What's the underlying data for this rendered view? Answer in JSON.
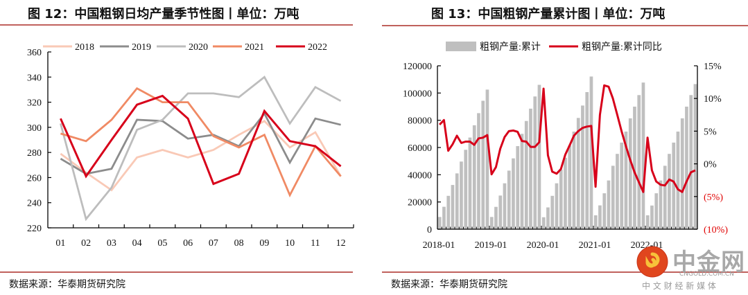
{
  "left": {
    "title": "图 12：中国粗钢日均产量季节性图丨单位：万吨",
    "source": "数据来源：华泰期货研究院"
  },
  "right": {
    "title": "图 13：中国粗钢产量累计图丨单位：万吨",
    "source": "数据来源：华泰期货研究院"
  },
  "watermark": {
    "name": "中金网",
    "domain": "CNGOLD.COM.CN",
    "tagline": "中 文 财 经 新 媒 体"
  },
  "colors": {
    "rule": "#c0605c",
    "bar": "#bfbfbf",
    "yoy_line": "#d7001a",
    "negative_label": "#e00000"
  },
  "chart_data": [
    {
      "type": "line",
      "title": "中国粗钢日均产量季节性图",
      "unit": "万吨",
      "categories": [
        "01",
        "02",
        "03",
        "04",
        "05",
        "06",
        "07",
        "08",
        "09",
        "10",
        "11",
        "12"
      ],
      "ylim": [
        220,
        360
      ],
      "yticks": [
        "220",
        "240",
        "260",
        "280",
        "300",
        "320",
        "340",
        "360"
      ],
      "legend_position": "top",
      "grid": false,
      "series": [
        {
          "name": "2018",
          "color": "#f9c9b6",
          "values": [
            279,
            264,
            250,
            276,
            282,
            276,
            282,
            294,
            305,
            284,
            296,
            261
          ]
        },
        {
          "name": "2019",
          "color": "#8c8c8c",
          "values": [
            275,
            263,
            267,
            306,
            305,
            291,
            294,
            285,
            311,
            272,
            307,
            302
          ]
        },
        {
          "name": "2020",
          "color": "#bdbdbd",
          "values": [
            303,
            227,
            252,
            298,
            306,
            327,
            327,
            324,
            340,
            303,
            332,
            321
          ]
        },
        {
          "name": "2021",
          "color": "#f08a64",
          "values": [
            295,
            289,
            306,
            331,
            320,
            320,
            293,
            284,
            294,
            246,
            285,
            261
          ]
        },
        {
          "name": "2022",
          "color": "#d7001a",
          "values": [
            307,
            261,
            290,
            318,
            325,
            307,
            255,
            263,
            313,
            289,
            285,
            269
          ]
        }
      ]
    },
    {
      "type": "bar+line",
      "title": "中国粗钢产量累计图",
      "unit": "万吨",
      "x_start": "2018-01",
      "x_end": "2022-12",
      "xtick_labels": [
        "2018-01",
        "2019-01",
        "2020-01",
        "2021-01",
        "2022-01"
      ],
      "legend_position": "top",
      "grid": false,
      "bar_series": {
        "name": "粗钢产量:累计",
        "axis": "left",
        "ylim": [
          0,
          120000
        ],
        "yticks": [
          "0",
          "20000",
          "40000",
          "60000",
          "80000",
          "100000",
          "120000"
        ],
        "values": [
          9000,
          16500,
          24500,
          32500,
          41000,
          49700,
          58300,
          67300,
          76300,
          85200,
          94300,
          102500,
          9000,
          16400,
          24700,
          33700,
          43000,
          52000,
          61000,
          70000,
          79500,
          88500,
          97500,
          106000,
          8800,
          16000,
          24500,
          33700,
          43700,
          52500,
          61500,
          71700,
          81700,
          90800,
          100700,
          112100,
          10200,
          17500,
          26400,
          35800,
          46600,
          55300,
          63600,
          71700,
          81400,
          90000,
          98500,
          107700,
          10200,
          17400,
          26400,
          35800,
          46600,
          55300,
          63600,
          71700,
          81400,
          90000,
          98500,
          106600
        ]
      },
      "line_series": {
        "name": "粗钢产量:累计同比",
        "axis": "right",
        "unit": "%",
        "ylim": [
          -10,
          15
        ],
        "yticks": [
          "(10%)",
          "(5%)",
          "0%",
          "5%",
          "10%",
          "15%"
        ],
        "values": [
          6.0,
          6.7,
          2.0,
          3.0,
          4.3,
          3.2,
          3.4,
          3.4,
          2.9,
          3.9,
          4.0,
          4.4,
          -1.6,
          -0.5,
          2.3,
          4.1,
          5.0,
          5.1,
          4.9,
          3.5,
          3.4,
          2.6,
          2.6,
          3.3,
          11.5,
          1.3,
          -1.2,
          -1.5,
          -0.8,
          1.4,
          2.8,
          4.3,
          5.0,
          5.5,
          5.7,
          5.8,
          -3.5,
          7.5,
          12.0,
          11.8,
          10.0,
          7.5,
          5.0,
          2.7,
          0.6,
          -1.3,
          -2.8,
          -4.3,
          4.0,
          -1.0,
          -2.7,
          -3.2,
          -3.3,
          -2.4,
          -2.7,
          -3.9,
          -4.3,
          -2.7,
          -1.3,
          -1.0
        ]
      }
    }
  ]
}
